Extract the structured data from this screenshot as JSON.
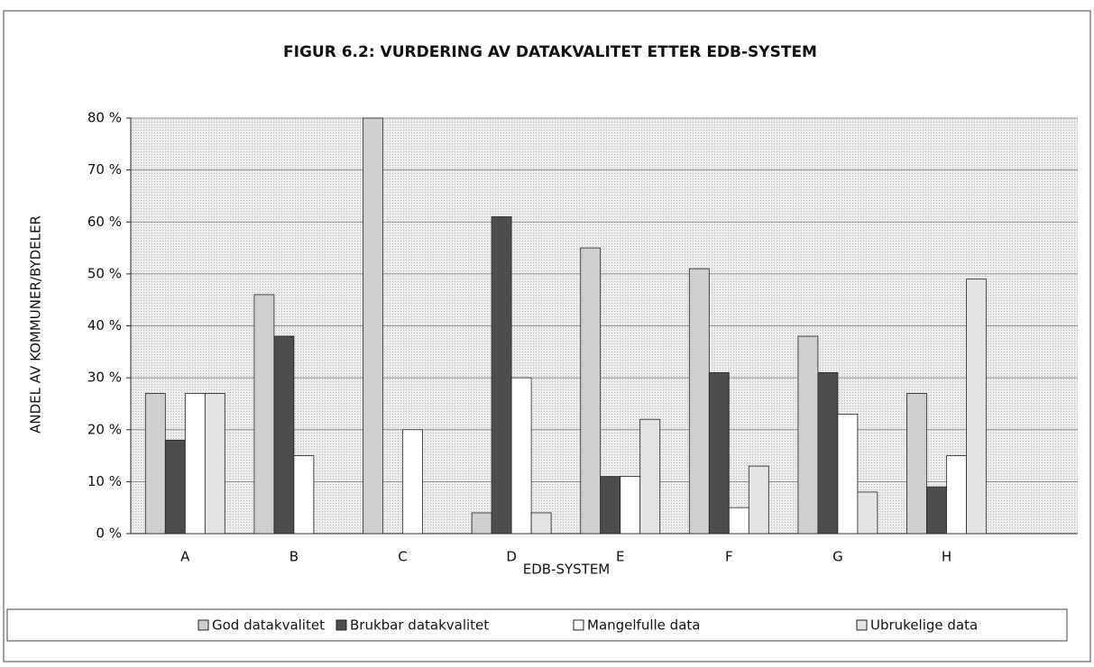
{
  "chart_data": {
    "type": "bar",
    "title": "FIGUR 6.2: VURDERING AV DATAKVALITET ETTER EDB-SYSTEM",
    "x_label": "EDB-SYSTEM",
    "y_label": "ANDEL AV KOMMUNER/BYDELER",
    "categories": [
      "A",
      "B",
      "C",
      "D",
      "E",
      "F",
      "G",
      "H"
    ],
    "series": [
      {
        "name": "God datakvalitet",
        "color": "#cfcfcf",
        "values": [
          27,
          46,
          80,
          4,
          55,
          51,
          38,
          27
        ]
      },
      {
        "name": "Brukbar datakvalitet",
        "color": "#4d4d4d",
        "values": [
          18,
          38,
          0,
          61,
          11,
          31,
          31,
          9
        ]
      },
      {
        "name": "Mangelfulle data",
        "color": "#ffffff",
        "values": [
          27,
          15,
          20,
          30,
          11,
          5,
          23,
          15
        ]
      },
      {
        "name": "Ubrukelige data",
        "color": "#e4e4e4",
        "values": [
          27,
          0,
          0,
          4,
          22,
          13,
          8,
          49
        ]
      }
    ],
    "ylim": [
      0,
      80
    ],
    "yticks": [
      {
        "value": 0,
        "label": "0 %"
      },
      {
        "value": 10,
        "label": "10 %"
      },
      {
        "value": 20,
        "label": "20 %"
      },
      {
        "value": 30,
        "label": "30 %"
      },
      {
        "value": 40,
        "label": "40 %"
      },
      {
        "value": 50,
        "label": "50 %"
      },
      {
        "value": 60,
        "label": "60 %"
      },
      {
        "value": 70,
        "label": "70 %"
      },
      {
        "value": 80,
        "label": "80 %"
      }
    ],
    "grid": true,
    "legend": "bottom"
  }
}
